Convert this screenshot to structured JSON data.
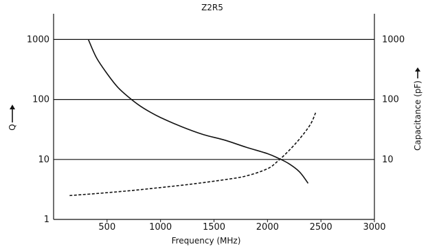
{
  "chart_data": {
    "type": "line",
    "title": "Z2R5",
    "xlabel": "Frequency (MHz)",
    "ylabel_left": "Q",
    "ylabel_right": "Capacitance (pF)",
    "xlim": [
      0,
      3000
    ],
    "ylim": [
      1,
      3000
    ],
    "yscale": "log",
    "grid": "horizontal",
    "x_ticks": [
      "500",
      "1000",
      "1500",
      "2000",
      "2500",
      "3000"
    ],
    "y_ticks_left": [
      "1",
      "10",
      "100",
      "1000"
    ],
    "y_ticks_right": [
      "10",
      "100",
      "1000"
    ],
    "series": [
      {
        "style": "solid",
        "axis": "left",
        "x": [
          325,
          400,
          500,
          600,
          700,
          800,
          900,
          1000,
          1200,
          1400,
          1600,
          1800,
          2000,
          2100,
          2200,
          2300,
          2380
        ],
        "y": [
          1000,
          500,
          270,
          160,
          110,
          80,
          62,
          50,
          35,
          26,
          21,
          16,
          12.5,
          10.5,
          8.5,
          6.2,
          4
        ]
      },
      {
        "style": "dashed",
        "axis": "right",
        "x": [
          150,
          400,
          700,
          1000,
          1300,
          1600,
          1800,
          2000,
          2100,
          2200,
          2300,
          2400,
          2450
        ],
        "y": [
          2.5,
          2.7,
          3.0,
          3.4,
          3.9,
          4.6,
          5.3,
          7.0,
          9.5,
          14,
          22,
          38,
          60
        ]
      }
    ]
  }
}
